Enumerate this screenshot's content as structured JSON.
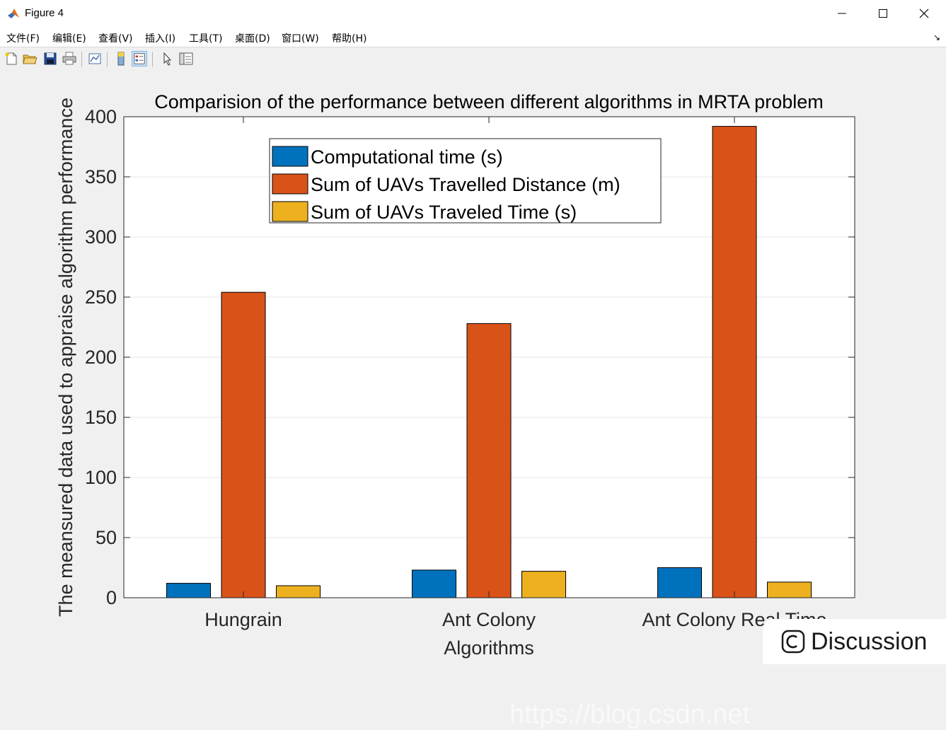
{
  "window": {
    "title": "Figure 4",
    "controls": {
      "minimize_icon": "minimize-icon",
      "maximize_icon": "maximize-icon",
      "close_icon": "close-icon"
    }
  },
  "menubar": {
    "items": [
      "文件(F)",
      "编辑(E)",
      "查看(V)",
      "插入(I)",
      "工具(T)",
      "桌面(D)",
      "窗口(W)",
      "帮助(H)"
    ],
    "collapse_glyph": "↘"
  },
  "toolbar": {
    "icons": [
      "new-figure-icon",
      "open-file-icon",
      "save-icon",
      "print-icon",
      "link-plot-icon",
      "colorbar-icon",
      "legend-icon",
      "pointer-icon",
      "property-editor-icon"
    ],
    "active": "legend-icon"
  },
  "chart_data": {
    "type": "bar",
    "title": "Comparision of the performance between different algorithms in MRTA problem",
    "xlabel": "Algorithms",
    "ylabel": "The meansured data used to appraise algorithm performance",
    "categories": [
      "Hungrain",
      "Ant Colony",
      "Ant Colony Real Time"
    ],
    "series": [
      {
        "name": "Computational time (s)",
        "color": "#0072BD",
        "values": [
          12,
          23,
          25
        ]
      },
      {
        "name": "Sum of UAVs Travelled Distance (m)",
        "color": "#D95319",
        "values": [
          254,
          228,
          392
        ]
      },
      {
        "name": "Sum of UAVs Traveled Time (s)",
        "color": "#EDB120",
        "values": [
          10,
          22,
          13
        ]
      }
    ],
    "ylim": [
      0,
      400
    ],
    "yticks": [
      0,
      50,
      100,
      150,
      200,
      250,
      300,
      350,
      400
    ],
    "grid": true,
    "legend_position": "top-center"
  },
  "overlay": {
    "watermark": "https://blog.csdn.net",
    "discussion_label": "Discussion"
  }
}
